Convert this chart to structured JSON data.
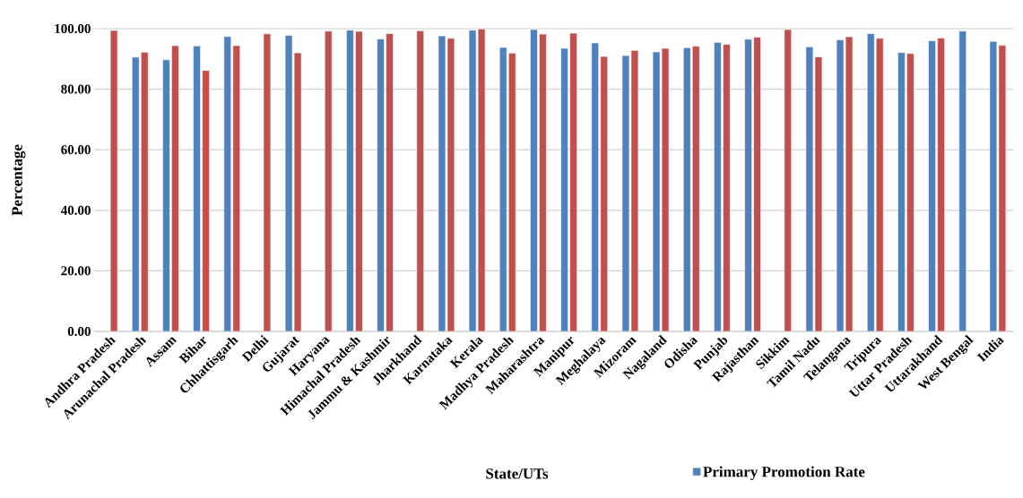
{
  "chart_data": {
    "type": "bar",
    "xlabel": "State/UTs",
    "ylabel": "Percentage",
    "categories": [
      "Andhra Pradesh",
      "Arunachal Pradesh",
      "Assam",
      "Bihar",
      "Chhattisgarh",
      "Delhi",
      "Gujarat",
      "Haryana",
      "Himachal Pradesh",
      "Jammu & Kashmir",
      "Jharkhand",
      "Karnataka",
      "Kerala",
      "Madhya Pradesh",
      "Maharashtra",
      "Manipur",
      "Meghalaya",
      "Mizoram",
      "Nagaland",
      "Odisha",
      "Punjab",
      "Rajasthan",
      "Sikkim",
      "Tamil Nadu",
      "Telangana",
      "Tripura",
      "Uttar Pradesh",
      "Uttarakhand",
      "West Bengal",
      "India"
    ],
    "series": [
      {
        "name": "Primary Promotion Rate",
        "color": "#4f81bd",
        "values": [
          null,
          90.6,
          89.7,
          94.3,
          97.4,
          null,
          97.8,
          null,
          99.5,
          96.6,
          null,
          97.6,
          99.5,
          93.8,
          99.7,
          93.5,
          95.3,
          91.1,
          92.3,
          93.7,
          95.5,
          96.5,
          null,
          94.0,
          96.3,
          98.4,
          92.1,
          96.0,
          99.2,
          95.8
        ]
      },
      {
        "color": "#c0504d",
        "values": [
          99.4,
          92.2,
          94.4,
          86.2,
          94.4,
          98.3,
          92.0,
          99.2,
          99.1,
          98.4,
          99.3,
          96.8,
          99.9,
          91.9,
          98.2,
          98.5,
          90.8,
          92.8,
          93.5,
          94.2,
          94.8,
          97.2,
          99.7,
          90.7,
          97.3,
          96.8,
          91.8,
          96.9,
          null,
          94.5
        ]
      }
    ],
    "ylim": [
      0,
      100
    ],
    "yticks": [
      {
        "value": 0,
        "label": "0.00"
      },
      {
        "value": 20,
        "label": "20.00"
      },
      {
        "value": 40,
        "label": "40.00"
      },
      {
        "value": 60,
        "label": "60.00"
      },
      {
        "value": 80,
        "label": "80.00"
      },
      {
        "value": 100,
        "label": "100.00"
      }
    ],
    "grid": "y",
    "legend": "bottom"
  }
}
